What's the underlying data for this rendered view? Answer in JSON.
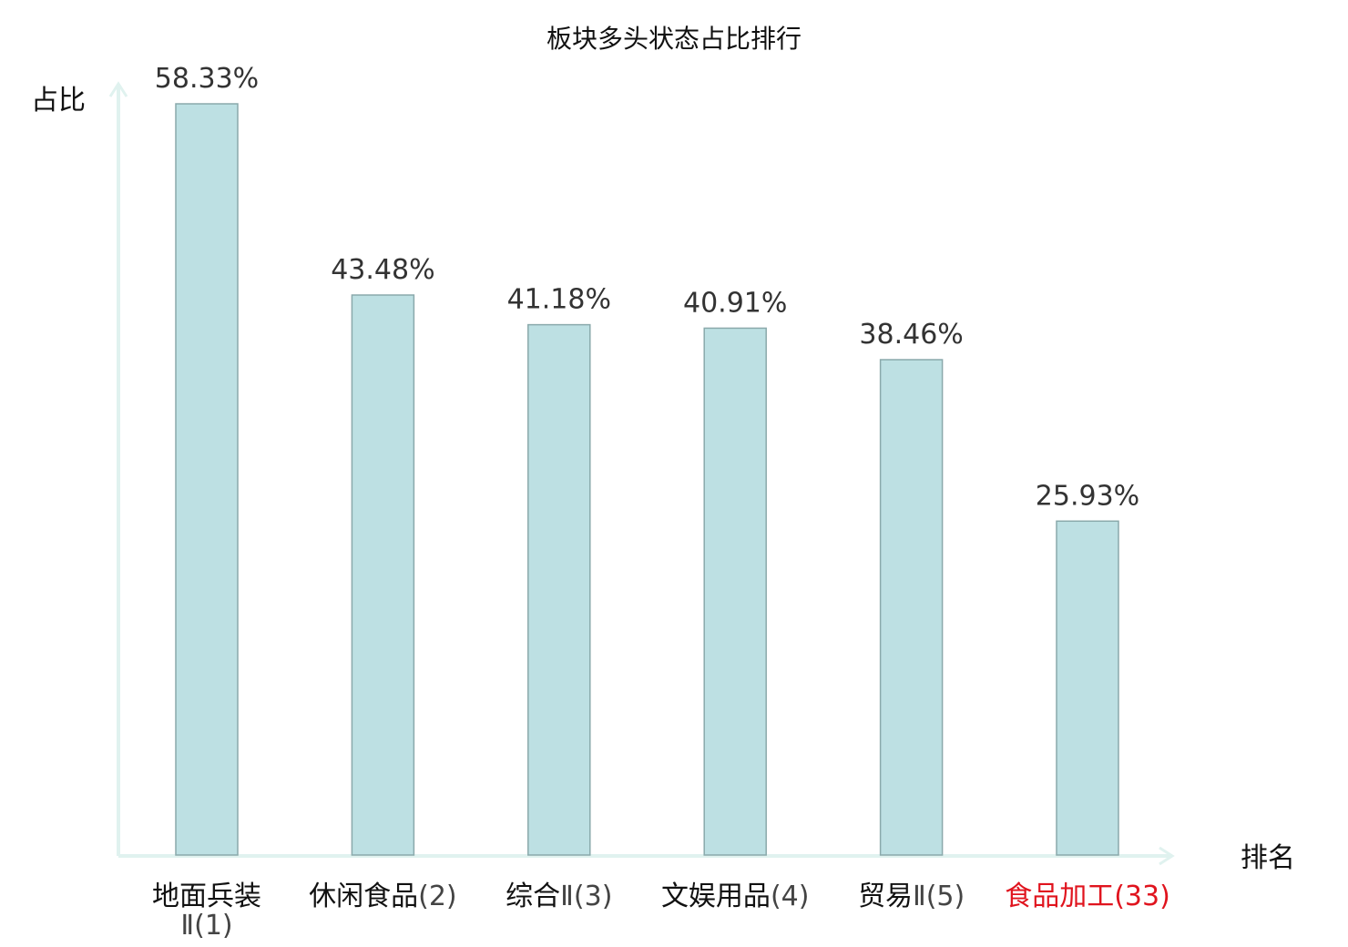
{
  "chart_data": {
    "type": "bar",
    "title": "板块多头状态占比排行",
    "ylabel": "占比",
    "xlabel": "排名",
    "ylim": [
      0,
      60
    ],
    "value_suffix": "%",
    "grid": false,
    "legend": "none",
    "categories": [
      {
        "name": "地面兵装",
        "rank": "Ⅱ(1)",
        "highlight": false
      },
      {
        "name": "休闲食品",
        "rank": "(2)",
        "highlight": false
      },
      {
        "name": "综合",
        "rank": "Ⅱ(3)",
        "highlight": false
      },
      {
        "name": "文娱用品",
        "rank": "(4)",
        "highlight": false
      },
      {
        "name": "贸易",
        "rank": "Ⅱ(5)",
        "highlight": false
      },
      {
        "name": "食品加工",
        "rank": "(33)",
        "highlight": true
      }
    ],
    "values": [
      58.33,
      43.48,
      41.18,
      40.91,
      38.46,
      25.93
    ],
    "value_labels": [
      "58.33%",
      "43.48%",
      "41.18%",
      "40.91%",
      "38.46%",
      "25.93%"
    ],
    "colors": {
      "bar_fill": "#bde0e3",
      "bar_stroke": "#8aa9ab",
      "axis": "#e0f2ef",
      "highlight_text": "#e0141e"
    }
  }
}
